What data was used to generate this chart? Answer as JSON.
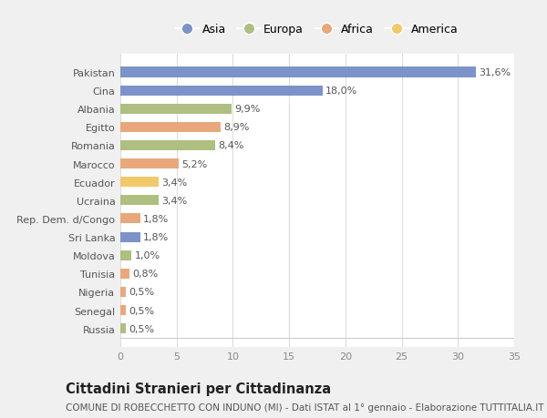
{
  "categories": [
    "Russia",
    "Senegal",
    "Nigeria",
    "Tunisia",
    "Moldova",
    "Sri Lanka",
    "Rep. Dem. d/Congo",
    "Ucraina",
    "Ecuador",
    "Marocco",
    "Romania",
    "Egitto",
    "Albania",
    "Cina",
    "Pakistan"
  ],
  "values": [
    0.5,
    0.5,
    0.5,
    0.8,
    1.0,
    1.8,
    1.8,
    3.4,
    3.4,
    5.2,
    8.4,
    8.9,
    9.9,
    18.0,
    31.6
  ],
  "labels": [
    "0,5%",
    "0,5%",
    "0,5%",
    "0,8%",
    "1,0%",
    "1,8%",
    "1,8%",
    "3,4%",
    "3,4%",
    "5,2%",
    "8,4%",
    "8,9%",
    "9,9%",
    "18,0%",
    "31,6%"
  ],
  "continents": [
    "Europa",
    "Africa",
    "Africa",
    "Africa",
    "Europa",
    "Asia",
    "Africa",
    "Europa",
    "America",
    "Africa",
    "Europa",
    "Africa",
    "Europa",
    "Asia",
    "Asia"
  ],
  "colors": {
    "Asia": "#7B93C9",
    "Europa": "#AEBF80",
    "Africa": "#E8A87C",
    "America": "#F2C96A"
  },
  "legend_order": [
    "Asia",
    "Europa",
    "Africa",
    "America"
  ],
  "xlim": [
    0,
    35
  ],
  "xticks": [
    0,
    5,
    10,
    15,
    20,
    25,
    30,
    35
  ],
  "title": "Cittadini Stranieri per Cittadinanza",
  "subtitle": "COMUNE DI ROBECCHETTO CON INDUNO (MI) - Dati ISTAT al 1° gennaio - Elaborazione TUTTITALIA.IT",
  "bg_color": "#f0f0f0",
  "plot_bg_color": "#ffffff",
  "bar_height": 0.55,
  "label_fontsize": 8,
  "tick_fontsize": 8,
  "title_fontsize": 10.5,
  "subtitle_fontsize": 7.5
}
